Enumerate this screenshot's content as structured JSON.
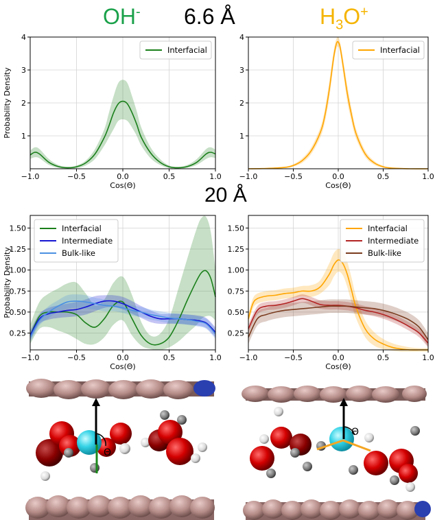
{
  "headings": {
    "left_species": "OH",
    "left_sup": "-",
    "distance_top": "6.6 Å",
    "right_species_a": "H",
    "right_sub": "3",
    "right_species_b": "O",
    "right_sup": "+",
    "distance_mid": "20 Å"
  },
  "colors": {
    "oh_green": "#1aa14a",
    "h3o_orange": "#f5b400",
    "interfacial_green": "#1a7f1a",
    "interfacial_orange": "#ffa500",
    "intermediate_blue": "#1414d2",
    "bulk_blue": "#4a90e2",
    "intermediate_red": "#b22222",
    "bulk_brown": "#7a3b1e"
  },
  "molecule_labels": {
    "theta_left": "Θ",
    "theta_right": "Θ"
  },
  "chart_data": [
    {
      "type": "line",
      "panel": "top-left",
      "xlabel": "Cos(Θ)",
      "ylabel": "Probability Density",
      "xlim": [
        -1,
        1
      ],
      "ylim": [
        0,
        4
      ],
      "xticks": [
        -1.0,
        -0.5,
        0.0,
        0.5,
        1.0
      ],
      "xtick_labels": [
        "−1.0",
        "−0.5",
        "0.0",
        "0.5",
        "1.0"
      ],
      "yticks": [
        1,
        2,
        3,
        4
      ],
      "ytick_labels": [
        "1",
        "2",
        "3",
        "4"
      ],
      "grid": true,
      "legend_position": "top-right",
      "series": [
        {
          "name": "Interfacial",
          "color": "#1a7f1a",
          "x": [
            -1.0,
            -0.95,
            -0.9,
            -0.8,
            -0.7,
            -0.6,
            -0.5,
            -0.4,
            -0.3,
            -0.2,
            -0.15,
            -0.1,
            -0.05,
            0.0,
            0.05,
            0.1,
            0.15,
            0.2,
            0.3,
            0.4,
            0.5,
            0.6,
            0.7,
            0.8,
            0.9,
            0.95,
            1.0
          ],
          "y": [
            0.42,
            0.5,
            0.45,
            0.2,
            0.07,
            0.03,
            0.06,
            0.18,
            0.45,
            0.95,
            1.3,
            1.7,
            1.97,
            2.05,
            1.97,
            1.7,
            1.35,
            0.95,
            0.48,
            0.2,
            0.06,
            0.03,
            0.07,
            0.2,
            0.45,
            0.5,
            0.45
          ],
          "upper": [
            0.55,
            0.65,
            0.6,
            0.3,
            0.12,
            0.06,
            0.1,
            0.25,
            0.6,
            1.2,
            1.7,
            2.2,
            2.6,
            2.7,
            2.6,
            2.2,
            1.75,
            1.25,
            0.65,
            0.3,
            0.1,
            0.06,
            0.12,
            0.3,
            0.6,
            0.65,
            0.58
          ],
          "lower": [
            0.3,
            0.35,
            0.32,
            0.12,
            0.03,
            0.0,
            0.02,
            0.1,
            0.3,
            0.7,
            0.95,
            1.2,
            1.45,
            1.5,
            1.45,
            1.25,
            1.0,
            0.7,
            0.32,
            0.12,
            0.02,
            0.0,
            0.03,
            0.12,
            0.3,
            0.35,
            0.32
          ]
        }
      ]
    },
    {
      "type": "line",
      "panel": "top-right",
      "xlabel": "Cos(Θ)",
      "ylabel": "",
      "xlim": [
        -1,
        1
      ],
      "ylim": [
        0,
        4
      ],
      "xticks": [
        -1.0,
        -0.5,
        0.0,
        0.5,
        1.0
      ],
      "xtick_labels": [
        "−1.0",
        "−0.5",
        "0.0",
        "0.5",
        "1.0"
      ],
      "yticks": [
        1,
        2,
        3,
        4
      ],
      "ytick_labels": [
        "1",
        "2",
        "3",
        "4"
      ],
      "grid": true,
      "legend_position": "top-right",
      "series": [
        {
          "name": "Interfacial",
          "color": "#ffa500",
          "x": [
            -1.0,
            -0.8,
            -0.6,
            -0.5,
            -0.4,
            -0.3,
            -0.2,
            -0.15,
            -0.1,
            -0.05,
            -0.02,
            0.0,
            0.02,
            0.05,
            0.1,
            0.15,
            0.2,
            0.3,
            0.4,
            0.5,
            0.6,
            0.8,
            1.0
          ],
          "y": [
            0.0,
            0.01,
            0.04,
            0.1,
            0.25,
            0.55,
            1.1,
            1.6,
            2.4,
            3.4,
            3.8,
            3.85,
            3.7,
            3.2,
            2.3,
            1.6,
            1.05,
            0.45,
            0.18,
            0.06,
            0.02,
            0.0,
            0.0
          ],
          "upper": [
            0.0,
            0.02,
            0.06,
            0.14,
            0.32,
            0.65,
            1.25,
            1.8,
            2.65,
            3.6,
            3.95,
            4.0,
            3.85,
            3.4,
            2.55,
            1.8,
            1.2,
            0.55,
            0.24,
            0.09,
            0.03,
            0.01,
            0.0
          ],
          "lower": [
            0.0,
            0.0,
            0.02,
            0.07,
            0.18,
            0.45,
            0.95,
            1.4,
            2.15,
            3.2,
            3.65,
            3.7,
            3.55,
            3.0,
            2.05,
            1.4,
            0.9,
            0.36,
            0.12,
            0.03,
            0.01,
            0.0,
            0.0
          ]
        }
      ]
    },
    {
      "type": "line",
      "panel": "bottom-left",
      "xlabel": "Cos(Θ)",
      "ylabel": "Probability Density",
      "xlim": [
        -1,
        1
      ],
      "ylim": [
        0.05,
        1.65
      ],
      "xticks": [
        -1.0,
        -0.5,
        0.0,
        0.5,
        1.0
      ],
      "xtick_labels": [
        "−1.0",
        "−0.5",
        "0.0",
        "0.5",
        "1.0"
      ],
      "yticks": [
        0.25,
        0.5,
        0.75,
        1.0,
        1.25,
        1.5
      ],
      "ytick_labels": [
        "0.25",
        "0.50",
        "0.75",
        "1.00",
        "1.25",
        "1.50"
      ],
      "grid": true,
      "legend_position": "top-left",
      "series": [
        {
          "name": "Interfacial",
          "color": "#1a7f1a",
          "x": [
            -1.0,
            -0.9,
            -0.8,
            -0.7,
            -0.6,
            -0.5,
            -0.4,
            -0.3,
            -0.2,
            -0.1,
            0.0,
            0.1,
            0.2,
            0.3,
            0.4,
            0.5,
            0.6,
            0.7,
            0.8,
            0.85,
            0.9,
            0.95,
            1.0
          ],
          "y": [
            0.22,
            0.45,
            0.5,
            0.5,
            0.5,
            0.47,
            0.37,
            0.32,
            0.42,
            0.58,
            0.62,
            0.42,
            0.22,
            0.12,
            0.12,
            0.2,
            0.4,
            0.65,
            0.88,
            0.97,
            0.99,
            0.9,
            0.68
          ],
          "upper": [
            0.35,
            0.62,
            0.72,
            0.78,
            0.84,
            0.85,
            0.72,
            0.58,
            0.65,
            0.85,
            0.92,
            0.7,
            0.38,
            0.22,
            0.24,
            0.42,
            0.78,
            1.15,
            1.5,
            1.62,
            1.63,
            1.45,
            1.0
          ],
          "lower": [
            0.12,
            0.3,
            0.32,
            0.28,
            0.24,
            0.18,
            0.12,
            0.12,
            0.2,
            0.35,
            0.4,
            0.22,
            0.1,
            0.06,
            0.05,
            0.08,
            0.15,
            0.25,
            0.35,
            0.42,
            0.45,
            0.45,
            0.4
          ]
        },
        {
          "name": "Intermediate",
          "color": "#1414d2",
          "x": [
            -1.0,
            -0.9,
            -0.8,
            -0.7,
            -0.6,
            -0.5,
            -0.4,
            -0.3,
            -0.2,
            -0.1,
            0.0,
            0.1,
            0.2,
            0.3,
            0.4,
            0.5,
            0.6,
            0.7,
            0.8,
            0.9,
            1.0
          ],
          "y": [
            0.22,
            0.42,
            0.48,
            0.5,
            0.52,
            0.53,
            0.56,
            0.6,
            0.63,
            0.63,
            0.6,
            0.55,
            0.5,
            0.45,
            0.42,
            0.42,
            0.42,
            0.41,
            0.4,
            0.37,
            0.26
          ],
          "upper": [
            0.28,
            0.48,
            0.55,
            0.58,
            0.6,
            0.62,
            0.65,
            0.69,
            0.7,
            0.7,
            0.68,
            0.63,
            0.57,
            0.52,
            0.48,
            0.48,
            0.48,
            0.47,
            0.46,
            0.43,
            0.32
          ],
          "lower": [
            0.16,
            0.36,
            0.41,
            0.43,
            0.44,
            0.45,
            0.47,
            0.51,
            0.55,
            0.56,
            0.53,
            0.48,
            0.43,
            0.38,
            0.36,
            0.36,
            0.36,
            0.35,
            0.34,
            0.31,
            0.2
          ]
        },
        {
          "name": "Bulk-like",
          "color": "#4a90e2",
          "x": [
            -1.0,
            -0.9,
            -0.8,
            -0.7,
            -0.6,
            -0.5,
            -0.4,
            -0.3,
            -0.2,
            -0.1,
            0.0,
            0.1,
            0.2,
            0.3,
            0.4,
            0.5,
            0.6,
            0.7,
            0.8,
            0.9,
            1.0
          ],
          "y": [
            0.2,
            0.4,
            0.5,
            0.57,
            0.62,
            0.63,
            0.62,
            0.6,
            0.58,
            0.57,
            0.55,
            0.52,
            0.5,
            0.47,
            0.45,
            0.43,
            0.42,
            0.41,
            0.39,
            0.36,
            0.24
          ],
          "upper": [
            0.26,
            0.46,
            0.57,
            0.64,
            0.7,
            0.71,
            0.7,
            0.67,
            0.65,
            0.63,
            0.61,
            0.58,
            0.56,
            0.53,
            0.51,
            0.49,
            0.48,
            0.47,
            0.45,
            0.42,
            0.3
          ],
          "lower": [
            0.14,
            0.34,
            0.43,
            0.5,
            0.54,
            0.55,
            0.54,
            0.53,
            0.51,
            0.51,
            0.49,
            0.46,
            0.44,
            0.41,
            0.39,
            0.37,
            0.36,
            0.35,
            0.33,
            0.3,
            0.18
          ]
        }
      ]
    },
    {
      "type": "line",
      "panel": "bottom-right",
      "xlabel": "Cos(Θ)",
      "ylabel": "",
      "xlim": [
        -1,
        1
      ],
      "ylim": [
        0.05,
        1.65
      ],
      "xticks": [
        -1.0,
        -0.5,
        0.0,
        0.5,
        1.0
      ],
      "xtick_labels": [
        "−1.0",
        "−0.5",
        "0.0",
        "0.5",
        "1.0"
      ],
      "yticks": [
        0.25,
        0.5,
        0.75,
        1.0,
        1.25,
        1.5
      ],
      "ytick_labels": [
        "0.25",
        "0.50",
        "0.75",
        "1.00",
        "1.25",
        "1.50"
      ],
      "grid": true,
      "legend_position": "top-right",
      "series": [
        {
          "name": "Interfacial",
          "color": "#ffa500",
          "x": [
            -1.0,
            -0.95,
            -0.9,
            -0.8,
            -0.7,
            -0.6,
            -0.5,
            -0.4,
            -0.3,
            -0.2,
            -0.1,
            -0.05,
            0.0,
            0.05,
            0.1,
            0.15,
            0.2,
            0.3,
            0.4,
            0.5,
            0.6,
            0.7,
            0.8,
            0.9,
            1.0
          ],
          "y": [
            0.42,
            0.6,
            0.66,
            0.69,
            0.7,
            0.72,
            0.73,
            0.75,
            0.75,
            0.8,
            0.95,
            1.06,
            1.12,
            1.08,
            0.95,
            0.75,
            0.55,
            0.3,
            0.18,
            0.12,
            0.08,
            0.06,
            0.05,
            0.05,
            0.05
          ],
          "upper": [
            0.48,
            0.66,
            0.72,
            0.75,
            0.76,
            0.78,
            0.79,
            0.81,
            0.82,
            0.88,
            1.08,
            1.2,
            1.25,
            1.22,
            1.1,
            0.9,
            0.68,
            0.4,
            0.26,
            0.18,
            0.13,
            0.1,
            0.08,
            0.07,
            0.07
          ],
          "lower": [
            0.36,
            0.54,
            0.6,
            0.63,
            0.64,
            0.66,
            0.67,
            0.69,
            0.68,
            0.72,
            0.82,
            0.92,
            0.98,
            0.94,
            0.8,
            0.6,
            0.42,
            0.2,
            0.1,
            0.06,
            0.04,
            0.03,
            0.03,
            0.03,
            0.03
          ]
        },
        {
          "name": "Intermediate",
          "color": "#b22222",
          "x": [
            -1.0,
            -0.9,
            -0.8,
            -0.7,
            -0.6,
            -0.5,
            -0.4,
            -0.3,
            -0.2,
            -0.1,
            0.0,
            0.1,
            0.2,
            0.3,
            0.4,
            0.5,
            0.6,
            0.7,
            0.8,
            0.9,
            1.0
          ],
          "y": [
            0.3,
            0.52,
            0.57,
            0.58,
            0.6,
            0.63,
            0.66,
            0.63,
            0.59,
            0.58,
            0.58,
            0.57,
            0.55,
            0.52,
            0.5,
            0.47,
            0.43,
            0.38,
            0.32,
            0.25,
            0.13
          ],
          "upper": [
            0.35,
            0.57,
            0.62,
            0.63,
            0.65,
            0.68,
            0.71,
            0.68,
            0.64,
            0.63,
            0.63,
            0.62,
            0.6,
            0.57,
            0.55,
            0.52,
            0.48,
            0.43,
            0.37,
            0.3,
            0.18
          ],
          "lower": [
            0.25,
            0.47,
            0.52,
            0.53,
            0.55,
            0.58,
            0.61,
            0.58,
            0.54,
            0.53,
            0.53,
            0.52,
            0.5,
            0.47,
            0.45,
            0.42,
            0.38,
            0.33,
            0.27,
            0.2,
            0.08
          ]
        },
        {
          "name": "Bulk-like",
          "color": "#7a3b1e",
          "x": [
            -1.0,
            -0.9,
            -0.8,
            -0.7,
            -0.6,
            -0.5,
            -0.4,
            -0.3,
            -0.2,
            -0.1,
            0.0,
            0.1,
            0.2,
            0.3,
            0.4,
            0.5,
            0.6,
            0.7,
            0.8,
            0.9,
            1.0
          ],
          "y": [
            0.2,
            0.42,
            0.47,
            0.5,
            0.52,
            0.53,
            0.54,
            0.55,
            0.56,
            0.57,
            0.57,
            0.57,
            0.56,
            0.55,
            0.54,
            0.52,
            0.49,
            0.45,
            0.4,
            0.32,
            0.17
          ],
          "upper": [
            0.28,
            0.5,
            0.55,
            0.58,
            0.6,
            0.61,
            0.62,
            0.63,
            0.64,
            0.65,
            0.65,
            0.65,
            0.64,
            0.63,
            0.62,
            0.6,
            0.57,
            0.53,
            0.48,
            0.4,
            0.25
          ],
          "lower": [
            0.12,
            0.34,
            0.39,
            0.42,
            0.44,
            0.45,
            0.46,
            0.47,
            0.48,
            0.49,
            0.49,
            0.49,
            0.48,
            0.47,
            0.46,
            0.44,
            0.41,
            0.37,
            0.32,
            0.24,
            0.09
          ]
        }
      ]
    }
  ]
}
